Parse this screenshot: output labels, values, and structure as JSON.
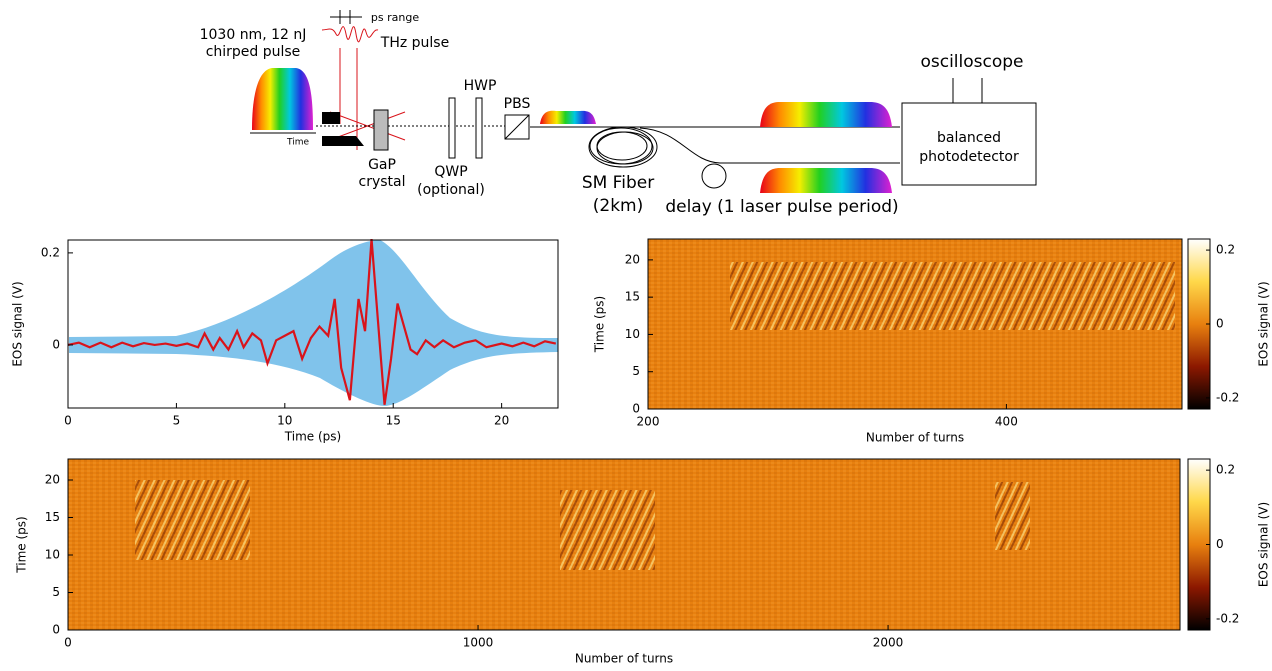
{
  "diagram": {
    "labels": {
      "energy": "1030 nm, 12 nJ",
      "pulse": "chirped pulse",
      "time": "Time",
      "range": "ps range",
      "thz": "THz pulse",
      "gap": "GaP",
      "crystal": "crystal",
      "qwp": "QWP",
      "optional": "(optional)",
      "hwp": "HWP",
      "pbs": "PBS",
      "fiber": "SM Fiber",
      "length": "(2km)",
      "delay": "delay (1 laser  pulse period)",
      "scope": "oscilloscope",
      "balanced": "balanced",
      "detector": "photodetector"
    }
  },
  "chart_data": [
    {
      "type": "line",
      "x_label": "Time (ps)",
      "y_label": "EOS signal (V)",
      "xlim": [
        0,
        22.6
      ],
      "xticks": [
        0,
        5,
        10,
        15,
        20
      ],
      "ylim": [
        -0.137,
        0.228
      ],
      "yticks": [
        0,
        0.2
      ],
      "x": [
        0,
        0.5,
        1,
        1.5,
        2,
        2.5,
        3,
        3.5,
        4,
        4.5,
        5,
        5.5,
        6,
        6.3,
        6.7,
        7,
        7.4,
        7.8,
        8.1,
        8.5,
        8.9,
        9.2,
        9.6,
        10,
        10.4,
        10.8,
        11.2,
        11.6,
        12,
        12.3,
        12.6,
        13,
        13.4,
        13.7,
        14,
        14.3,
        14.6,
        14.9,
        15.2,
        15.5,
        15.8,
        16.1,
        16.5,
        16.9,
        17.3,
        17.8,
        18.3,
        18.8,
        19.3,
        20,
        20.5,
        21,
        21.5,
        22,
        22.5
      ],
      "series": [
        {
          "color": "#d9141b",
          "values": [
            0,
            0.005,
            -0.005,
            0.005,
            -0.005,
            0.005,
            -0.003,
            0.004,
            0,
            0.003,
            -0.002,
            0.003,
            -0.005,
            0.025,
            -0.01,
            0.015,
            -0.01,
            0.03,
            -0.005,
            0.025,
            0.01,
            -0.04,
            0.01,
            0.02,
            0.03,
            -0.03,
            0.015,
            0.04,
            0.02,
            0.1,
            -0.05,
            -0.12,
            0.1,
            0.03,
            0.23,
            0.05,
            -0.13,
            -0.03,
            0.09,
            0.04,
            -0.01,
            -0.02,
            0.01,
            -0.005,
            0.01,
            -0.005,
            0.005,
            0.01,
            -0.005,
            0.003,
            -0.003,
            0.005,
            -0.003,
            0.008,
            0.003
          ]
        }
      ]
    },
    {
      "type": "heatmap",
      "x_label": "Number of turns",
      "y_label": "Time (ps)",
      "xlim": [
        200,
        498
      ],
      "xticks": [
        200,
        400
      ],
      "ylim": [
        0,
        22.8
      ],
      "yticks": [
        0,
        5,
        10,
        15,
        20
      ],
      "colormap": [
        "#000000",
        "#8c1800",
        "#e8800f",
        "#ffd84a",
        "#ffffff"
      ],
      "colorbar_label": "EOS signal (V)",
      "colorbar_lim": [
        -0.23,
        0.23
      ],
      "colorbar_ticks": [
        -0.2,
        0,
        0.2
      ]
    },
    {
      "type": "heatmap",
      "x_label": "Number of turns",
      "y_label": "Time (ps)",
      "xlim": [
        0,
        2712
      ],
      "xticks": [
        0,
        1000,
        2000
      ],
      "ylim": [
        0,
        22.8
      ],
      "yticks": [
        0,
        5,
        10,
        15,
        20
      ],
      "colormap": [
        "#000000",
        "#8c1800",
        "#e8800f",
        "#ffd84a",
        "#ffffff"
      ],
      "colorbar_label": "EOS signal (V)",
      "colorbar_lim": [
        -0.23,
        0.23
      ],
      "colorbar_ticks": [
        -0.2,
        0,
        0.2
      ]
    }
  ]
}
